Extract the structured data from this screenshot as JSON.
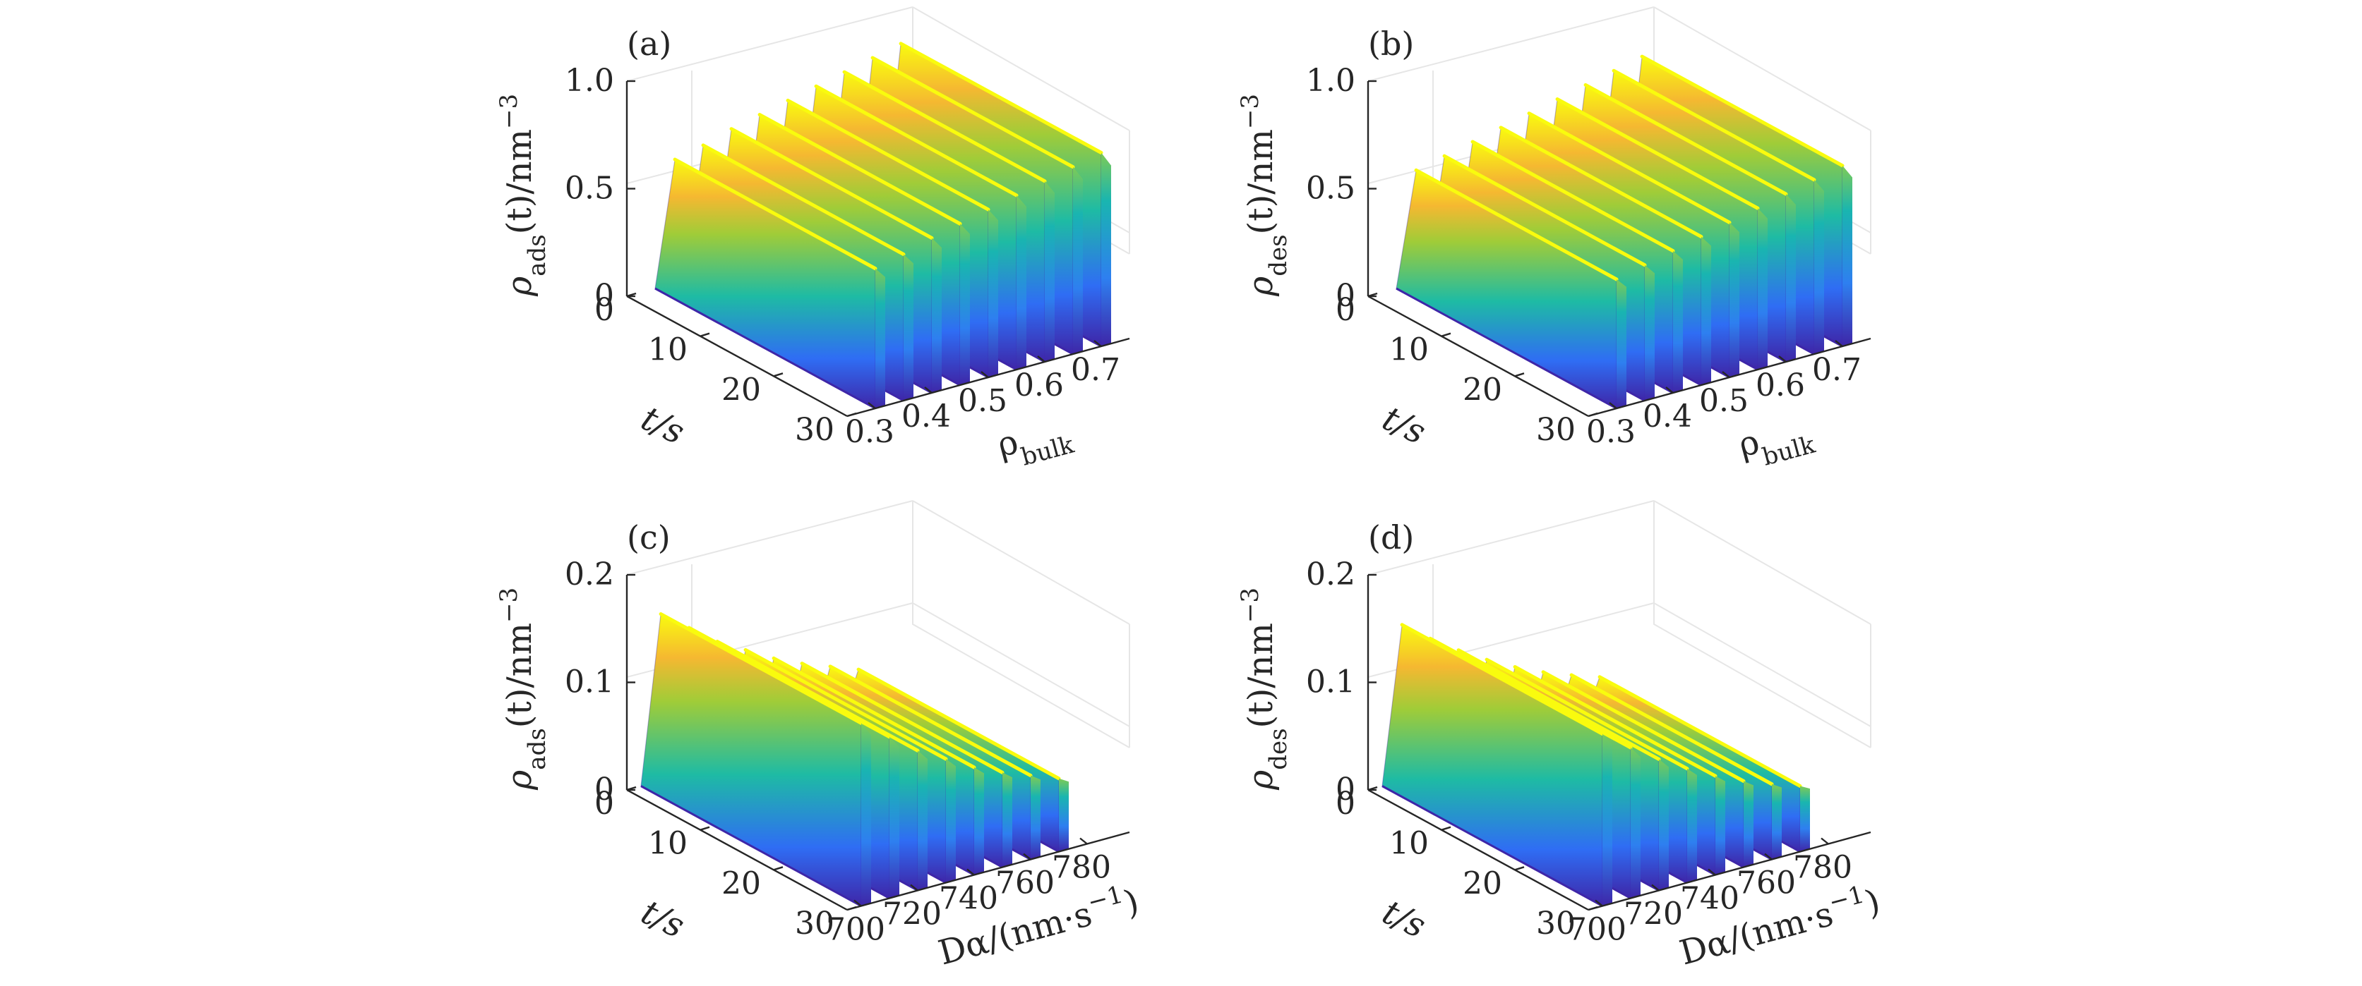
{
  "figure": {
    "panels": [
      {
        "tag": "(a)",
        "zlabel": "ρads(t)/nm⁻³",
        "zlabel_main": "ρ",
        "zlabel_sub": "ads",
        "zlabel_rest": "(t)/nm",
        "zlabel_sup": "−3",
        "tlabel": "t/s",
        "xlabel_main": "ρ",
        "xlabel_sub": "bulk"
      },
      {
        "tag": "(b)",
        "zlabel": "ρdes(t)/nm⁻³",
        "zlabel_main": "ρ",
        "zlabel_sub": "des",
        "zlabel_rest": "(t)/nm",
        "zlabel_sup": "−3",
        "tlabel": "t/s",
        "xlabel_main": "ρ",
        "xlabel_sub": "bulk"
      },
      {
        "tag": "(c)",
        "zlabel": "ρads(t)/nm⁻³",
        "zlabel_main": "ρ",
        "zlabel_sub": "ads",
        "zlabel_rest": "(t)/nm",
        "zlabel_sup": "−3",
        "tlabel": "t/s",
        "xlabel_main": "Dα/(nm·s",
        "xlabel_sup": "−1",
        "xlabel_tail": ")"
      },
      {
        "tag": "(d)",
        "zlabel": "ρdes(t)/nm⁻³",
        "zlabel_main": "ρ",
        "zlabel_sub": "des",
        "zlabel_rest": "(t)/nm",
        "zlabel_sup": "−3",
        "tlabel": "t/s",
        "xlabel_main": "Dα/(nm·s",
        "xlabel_sup": "−1",
        "xlabel_tail": ")"
      }
    ]
  },
  "colors": {
    "low": "#3e26a8",
    "mid": "#1ebba4",
    "high": "#f9fb0e",
    "orange": "#f5b831"
  },
  "chart_data": [
    {
      "type": "surface",
      "title": "(a)",
      "xlabel": "ρbulk",
      "ylabel": "t/s",
      "zlabel": "ρads(t)/nm⁻³",
      "x_ticks": [
        "0.3",
        "0.4",
        "0.5",
        "0.6",
        "0.7"
      ],
      "t_ticks": [
        "0",
        "10",
        "20",
        "30"
      ],
      "z_ticks": [
        "0",
        "0.5",
        "1.0"
      ],
      "xlim": [
        0.25,
        0.75
      ],
      "tlim": [
        0,
        30
      ],
      "zlim": [
        0,
        1.0
      ],
      "series": [
        {
          "name": "ρbulk = 0.3",
          "x": 0.3,
          "peak": 0.65
        },
        {
          "name": "ρbulk = 0.35",
          "x": 0.35,
          "peak": 0.68
        },
        {
          "name": "ρbulk = 0.4",
          "x": 0.4,
          "peak": 0.72
        },
        {
          "name": "ρbulk = 0.45",
          "x": 0.45,
          "peak": 0.75
        },
        {
          "name": "ρbulk = 0.5",
          "x": 0.5,
          "peak": 0.78
        },
        {
          "name": "ρbulk = 0.55",
          "x": 0.55,
          "peak": 0.81
        },
        {
          "name": "ρbulk = 0.6",
          "x": 0.6,
          "peak": 0.84
        },
        {
          "name": "ρbulk = 0.65",
          "x": 0.65,
          "peak": 0.87
        },
        {
          "name": "ρbulk = 0.7",
          "x": 0.7,
          "peak": 0.9
        }
      ]
    },
    {
      "type": "surface",
      "title": "(b)",
      "xlabel": "ρbulk",
      "ylabel": "t/s",
      "zlabel": "ρdes(t)/nm⁻³",
      "x_ticks": [
        "0.3",
        "0.4",
        "0.5",
        "0.6",
        "0.7"
      ],
      "t_ticks": [
        "0",
        "10",
        "20",
        "30"
      ],
      "z_ticks": [
        "0",
        "0.5",
        "1.0"
      ],
      "xlim": [
        0.25,
        0.75
      ],
      "tlim": [
        0,
        30
      ],
      "zlim": [
        0,
        1.0
      ],
      "series": [
        {
          "name": "ρbulk = 0.3",
          "x": 0.3,
          "peak": 0.6
        },
        {
          "name": "ρbulk = 0.35",
          "x": 0.35,
          "peak": 0.63
        },
        {
          "name": "ρbulk = 0.4",
          "x": 0.4,
          "peak": 0.66
        },
        {
          "name": "ρbulk = 0.45",
          "x": 0.45,
          "peak": 0.69
        },
        {
          "name": "ρbulk = 0.5",
          "x": 0.5,
          "peak": 0.72
        },
        {
          "name": "ρbulk = 0.55",
          "x": 0.55,
          "peak": 0.75
        },
        {
          "name": "ρbulk = 0.6",
          "x": 0.6,
          "peak": 0.78
        },
        {
          "name": "ρbulk = 0.65",
          "x": 0.65,
          "peak": 0.81
        },
        {
          "name": "ρbulk = 0.7",
          "x": 0.7,
          "peak": 0.84
        }
      ]
    },
    {
      "type": "surface",
      "title": "(c)",
      "xlabel": "Dα/(nm·s⁻¹)",
      "ylabel": "t/s",
      "zlabel": "ρads(t)/nm⁻³",
      "x_ticks": [
        "700",
        "720",
        "740",
        "760",
        "780"
      ],
      "t_ticks": [
        "0",
        "10",
        "20",
        "30"
      ],
      "z_ticks": [
        "0",
        "0.1",
        "0.2"
      ],
      "xlim": [
        695,
        795
      ],
      "tlim": [
        0,
        30
      ],
      "zlim": [
        0,
        0.2
      ],
      "series": [
        {
          "name": "Dα = 700",
          "x": 700,
          "peak": 0.17
        },
        {
          "name": "Dα = 710",
          "x": 710,
          "peak": 0.15
        },
        {
          "name": "Dα = 720",
          "x": 720,
          "peak": 0.13
        },
        {
          "name": "Dα = 730",
          "x": 730,
          "peak": 0.115
        },
        {
          "name": "Dα = 740",
          "x": 740,
          "peak": 0.1
        },
        {
          "name": "Dα = 750",
          "x": 750,
          "peak": 0.088
        },
        {
          "name": "Dα = 760",
          "x": 760,
          "peak": 0.078
        },
        {
          "name": "Dα = 770",
          "x": 770,
          "peak": 0.068
        }
      ]
    },
    {
      "type": "surface",
      "title": "(d)",
      "xlabel": "Dα/(nm·s⁻¹)",
      "ylabel": "t/s",
      "zlabel": "ρdes(t)/nm⁻³",
      "x_ticks": [
        "700",
        "720",
        "740",
        "760",
        "780"
      ],
      "t_ticks": [
        "0",
        "10",
        "20",
        "30"
      ],
      "z_ticks": [
        "0",
        "0.1",
        "0.2"
      ],
      "xlim": [
        695,
        795
      ],
      "tlim": [
        0,
        30
      ],
      "zlim": [
        0,
        0.2
      ],
      "series": [
        {
          "name": "Dα = 700",
          "x": 700,
          "peak": 0.16
        },
        {
          "name": "Dα = 710",
          "x": 710,
          "peak": 0.14
        },
        {
          "name": "Dα = 720",
          "x": 720,
          "peak": 0.122
        },
        {
          "name": "Dα = 730",
          "x": 730,
          "peak": 0.106
        },
        {
          "name": "Dα = 740",
          "x": 740,
          "peak": 0.092
        },
        {
          "name": "Dα = 750",
          "x": 750,
          "peak": 0.08
        },
        {
          "name": "Dα = 760",
          "x": 760,
          "peak": 0.07
        },
        {
          "name": "Dα = 770",
          "x": 770,
          "peak": 0.061
        }
      ]
    }
  ]
}
